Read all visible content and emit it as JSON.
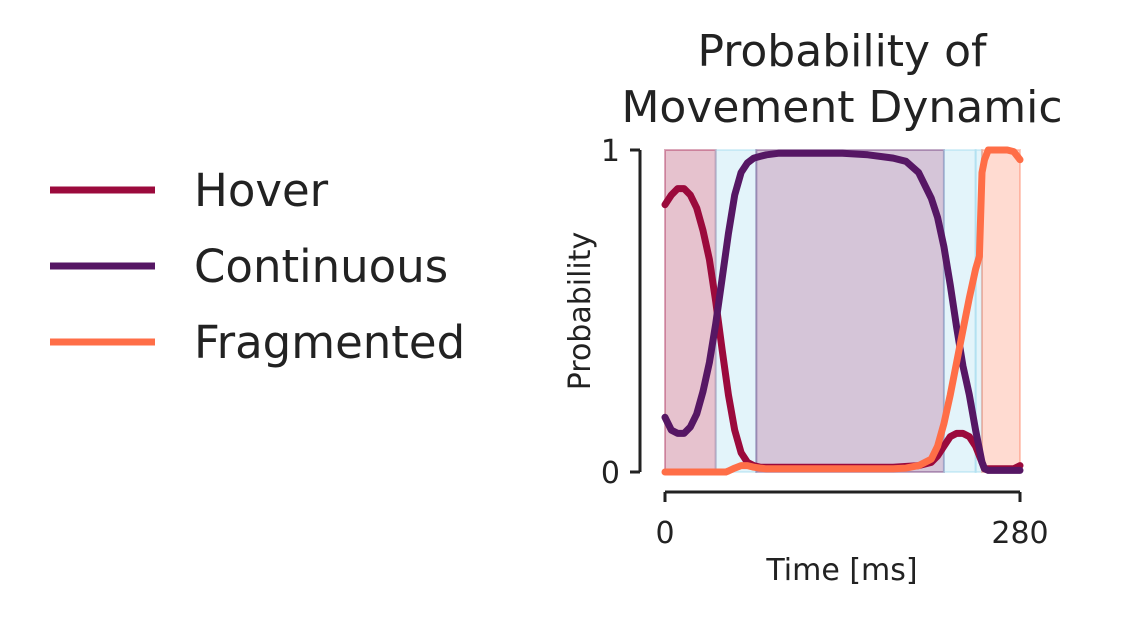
{
  "chart_data": {
    "type": "line",
    "title_line1": "Probability of",
    "title_line2": "Movement Dynamic",
    "xlabel": "Time [ms]",
    "ylabel": "Probability",
    "xlim": [
      0,
      280
    ],
    "ylim": [
      0,
      1
    ],
    "xticks": [
      {
        "value": 0,
        "label": "0"
      },
      {
        "value": 280,
        "label": "280"
      }
    ],
    "yticks": [
      {
        "value": 0,
        "label": "0"
      },
      {
        "value": 1,
        "label": "1"
      }
    ],
    "grid": false,
    "legend_position": "left",
    "series": [
      {
        "name": "Hover",
        "color": "#9b0a3c",
        "x": [
          0,
          5,
          10,
          15,
          20,
          25,
          30,
          35,
          40,
          45,
          50,
          55,
          60,
          65,
          70,
          75,
          80,
          90,
          100,
          120,
          140,
          160,
          180,
          200,
          210,
          215,
          220,
          225,
          230,
          235,
          240,
          245,
          250,
          252,
          255,
          260,
          265,
          270,
          275,
          280
        ],
        "values": [
          0.83,
          0.86,
          0.88,
          0.88,
          0.86,
          0.82,
          0.75,
          0.66,
          0.53,
          0.38,
          0.24,
          0.13,
          0.06,
          0.03,
          0.02,
          0.015,
          0.015,
          0.015,
          0.015,
          0.015,
          0.015,
          0.015,
          0.015,
          0.02,
          0.03,
          0.05,
          0.08,
          0.11,
          0.12,
          0.12,
          0.11,
          0.08,
          0.03,
          0.01,
          0.01,
          0.01,
          0.01,
          0.01,
          0.01,
          0.02
        ]
      },
      {
        "name": "Continuous",
        "color": "#561764",
        "x": [
          0,
          5,
          10,
          15,
          20,
          25,
          30,
          35,
          40,
          45,
          50,
          55,
          60,
          65,
          70,
          75,
          80,
          90,
          100,
          120,
          140,
          160,
          180,
          190,
          200,
          210,
          215,
          220,
          225,
          230,
          235,
          240,
          245,
          250,
          252,
          255,
          260,
          270,
          280
        ],
        "values": [
          0.17,
          0.13,
          0.12,
          0.12,
          0.14,
          0.18,
          0.25,
          0.34,
          0.46,
          0.6,
          0.74,
          0.86,
          0.93,
          0.96,
          0.975,
          0.98,
          0.985,
          0.99,
          0.99,
          0.99,
          0.99,
          0.985,
          0.975,
          0.965,
          0.93,
          0.85,
          0.79,
          0.7,
          0.58,
          0.45,
          0.33,
          0.24,
          0.13,
          0.03,
          0.01,
          0.005,
          0.005,
          0.005,
          0.005
        ]
      },
      {
        "name": "Fragmented",
        "color": "#ff6e47",
        "x": [
          0,
          20,
          40,
          48,
          50,
          55,
          60,
          65,
          70,
          75,
          80,
          90,
          100,
          120,
          140,
          160,
          180,
          190,
          200,
          210,
          215,
          220,
          225,
          230,
          235,
          240,
          245,
          248,
          250,
          252,
          255,
          260,
          270,
          275,
          280
        ],
        "values": [
          0.0,
          0.0,
          0.0,
          0.0,
          0.003,
          0.012,
          0.02,
          0.02,
          0.015,
          0.012,
          0.01,
          0.01,
          0.01,
          0.01,
          0.01,
          0.01,
          0.01,
          0.012,
          0.02,
          0.04,
          0.08,
          0.15,
          0.24,
          0.34,
          0.44,
          0.54,
          0.63,
          0.67,
          0.93,
          0.97,
          1.0,
          1.0,
          1.0,
          0.995,
          0.97
        ]
      }
    ],
    "shaded_regions": [
      {
        "state": "Hover",
        "color": "#9b0a3c",
        "start": 0,
        "end": 40
      },
      {
        "state": "transition",
        "color": "#8fd4ec",
        "start": 40,
        "end": 72
      },
      {
        "state": "Continuous",
        "color": "#561764",
        "start": 72,
        "end": 220
      },
      {
        "state": "transition",
        "color": "#8fd4ec",
        "start": 220,
        "end": 245
      },
      {
        "state": "transition",
        "color": "#8fd4ec",
        "start": 245,
        "end": 250
      },
      {
        "state": "Fragmented",
        "color": "#ff6e47",
        "start": 250,
        "end": 280
      }
    ]
  }
}
